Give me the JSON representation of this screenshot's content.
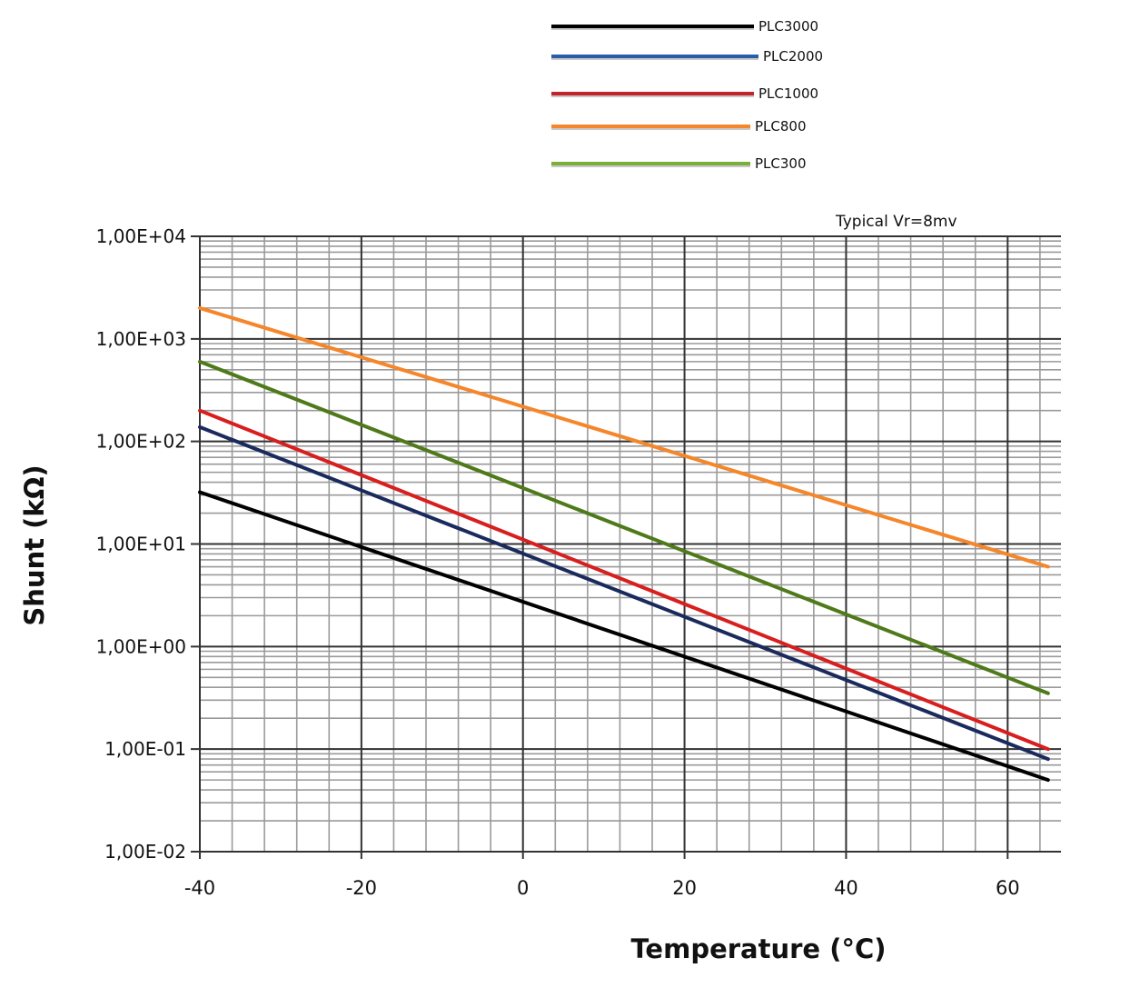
{
  "chart_data": {
    "type": "line",
    "title": "",
    "annotation": "Typical Vr=8mv",
    "xlabel": "Temperature (°C)",
    "ylabel": "Shunt (kΩ)",
    "xscale": "linear",
    "yscale": "log",
    "xlim": [
      -40,
      66.6
    ],
    "ylim": [
      0.01,
      10000
    ],
    "x_ticks": [
      -40,
      -20,
      0,
      20,
      40,
      60
    ],
    "x_tick_labels": [
      "-40",
      "-20",
      "0",
      "20",
      "40",
      "60"
    ],
    "x_minor_step": 4,
    "y_ticks": [
      10000,
      1000,
      100,
      10,
      1,
      0.1,
      0.01
    ],
    "y_tick_labels": [
      "1,00E+04",
      "1,00E+03",
      "1,00E+02",
      "1,00E+01",
      "1,00E+00",
      "1,00E-01",
      "1,00E-02"
    ],
    "grid": true,
    "legend_position": "top-center",
    "series": [
      {
        "name": "PLC3000",
        "legend_label": "PLC3000",
        "color": "#000000",
        "x": [
          -40,
          65
        ],
        "y": [
          32,
          0.05
        ]
      },
      {
        "name": "PLC2000",
        "legend_label": "PLC2000",
        "color": "#1a2a5c",
        "legend_color": "#2a5caa",
        "x": [
          -40,
          65
        ],
        "y": [
          138,
          0.08
        ]
      },
      {
        "name": "PLC1000",
        "legend_label": "PLC1000",
        "color": "#d81e1e",
        "legend_color": "#c0262b",
        "x": [
          -40,
          65
        ],
        "y": [
          200,
          0.1
        ]
      },
      {
        "name": "PLC800",
        "legend_label": "PLC800",
        "color": "#f5862a",
        "x": [
          -40,
          65
        ],
        "y": [
          2000,
          6
        ]
      },
      {
        "name": "PLC300",
        "legend_label": "PLC300",
        "color": "#4f7a1a",
        "legend_color": "#7ab03a",
        "x": [
          -40,
          65
        ],
        "y": [
          600,
          0.35
        ]
      }
    ]
  }
}
